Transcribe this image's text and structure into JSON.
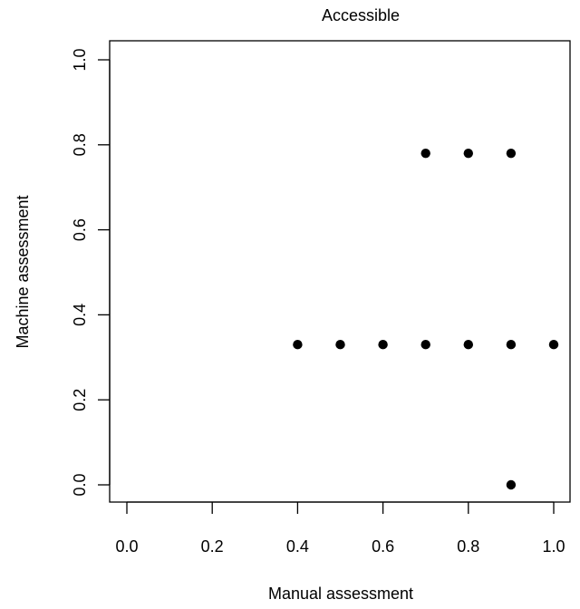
{
  "chart_data": {
    "type": "scatter",
    "title": "Accessible",
    "xlabel": "Manual assessment",
    "ylabel": "Machine assessment",
    "xlim": [
      0.0,
      1.0
    ],
    "ylim": [
      0.0,
      1.0
    ],
    "x_ticks": [
      0.0,
      0.2,
      0.4,
      0.6,
      0.8,
      1.0
    ],
    "x_tick_labels": [
      "0.0",
      "0.2",
      "0.4",
      "0.6",
      "0.8",
      "1.0"
    ],
    "y_ticks": [
      0.0,
      0.2,
      0.4,
      0.6,
      0.8,
      1.0
    ],
    "y_tick_labels": [
      "0.0",
      "0.2",
      "0.4",
      "0.6",
      "0.8",
      "1.0"
    ],
    "grid": false,
    "legend": "none",
    "marker_color": "#000000",
    "points": [
      {
        "x": 0.4,
        "y": 0.33
      },
      {
        "x": 0.5,
        "y": 0.33
      },
      {
        "x": 0.6,
        "y": 0.33
      },
      {
        "x": 0.7,
        "y": 0.33
      },
      {
        "x": 0.8,
        "y": 0.33
      },
      {
        "x": 0.9,
        "y": 0.33
      },
      {
        "x": 1.0,
        "y": 0.33
      },
      {
        "x": 0.7,
        "y": 0.78
      },
      {
        "x": 0.8,
        "y": 0.78
      },
      {
        "x": 0.9,
        "y": 0.78
      },
      {
        "x": 0.9,
        "y": 0.0
      }
    ]
  }
}
